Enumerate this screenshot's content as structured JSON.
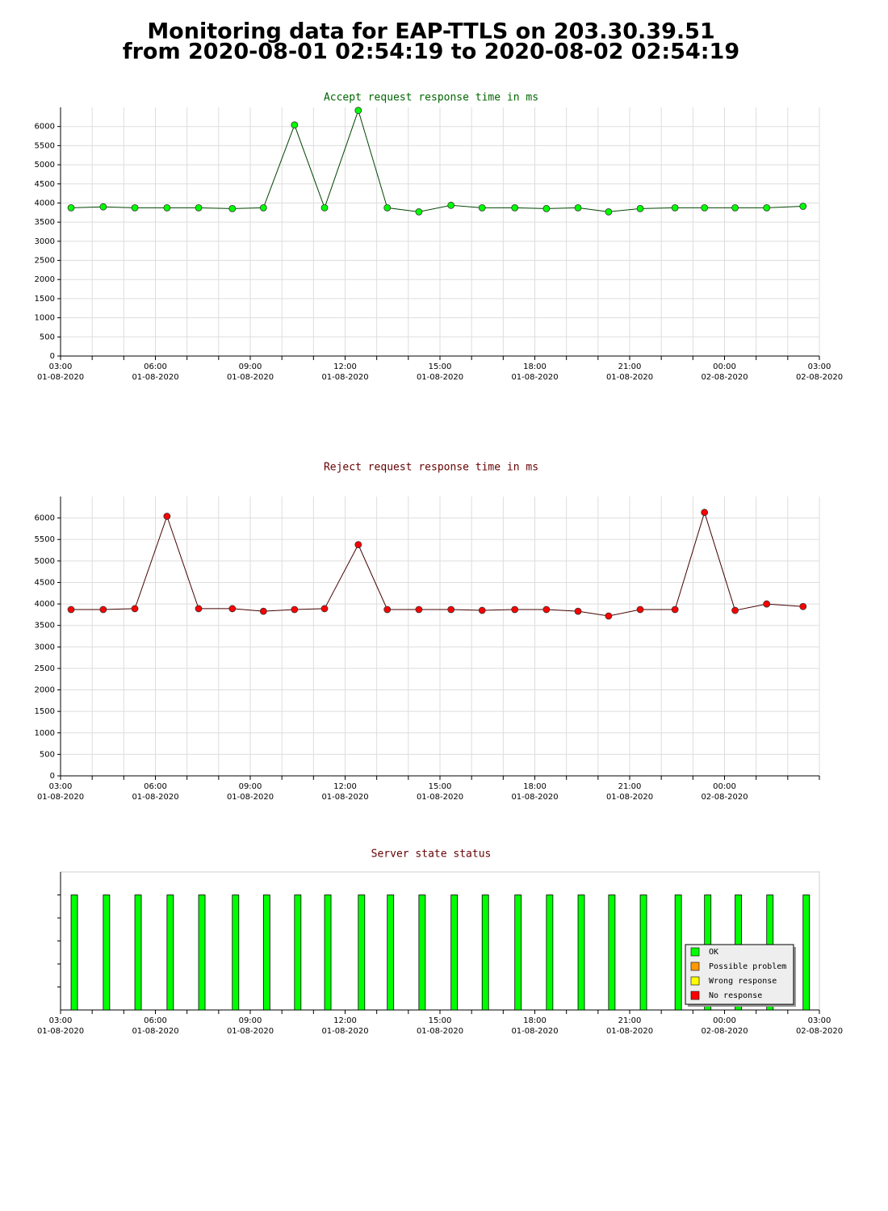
{
  "title": [
    "Monitoring data for EAP-TTLS on 203.30.39.51",
    "from 2020-08-01 02:54:19 to 2020-08-02 02:54:19"
  ],
  "chart_data": [
    {
      "type": "line",
      "title": "Accept request response time in ms",
      "title_color": "#006600",
      "x": [
        "2020-08-01 03:20",
        "2020-08-01 04:21",
        "2020-08-01 05:21",
        "2020-08-01 06:22",
        "2020-08-01 07:22",
        "2020-08-01 08:26",
        "2020-08-01 09:25",
        "2020-08-01 10:24",
        "2020-08-01 11:21",
        "2020-08-01 12:25",
        "2020-08-01 13:20",
        "2020-08-01 14:20",
        "2020-08-01 15:21",
        "2020-08-01 16:20",
        "2020-08-01 17:22",
        "2020-08-01 18:22",
        "2020-08-01 19:22",
        "2020-08-01 20:20",
        "2020-08-01 21:20",
        "2020-08-01 22:26",
        "2020-08-01 23:22",
        "2020-08-02 00:20",
        "2020-08-02 01:20",
        "2020-08-02 02:29"
      ],
      "values": [
        3875,
        3900,
        3875,
        3875,
        3875,
        3854,
        3875,
        6040,
        3875,
        6420,
        3875,
        3770,
        3940,
        3875,
        3875,
        3854,
        3875,
        3770,
        3854,
        3875,
        3875,
        3875,
        3875,
        3915
      ],
      "color": "#00ff00",
      "line_color": "#004400",
      "xlim": [
        "2020-08-01 03:00",
        "2020-08-02 03:00"
      ],
      "xticks": [
        {
          "value": "2020-08-01 03:00",
          "label": [
            "03:00",
            "01-08-2020"
          ]
        },
        {
          "value": "2020-08-01 04:00",
          "label": null
        },
        {
          "value": "2020-08-01 05:00",
          "label": null
        },
        {
          "value": "2020-08-01 06:00",
          "label": [
            "06:00",
            "01-08-2020"
          ]
        },
        {
          "value": "2020-08-01 07:00",
          "label": null
        },
        {
          "value": "2020-08-01 08:00",
          "label": null
        },
        {
          "value": "2020-08-01 09:00",
          "label": [
            "09:00",
            "01-08-2020"
          ]
        },
        {
          "value": "2020-08-01 10:00",
          "label": null
        },
        {
          "value": "2020-08-01 11:00",
          "label": null
        },
        {
          "value": "2020-08-01 12:00",
          "label": [
            "12:00",
            "01-08-2020"
          ]
        },
        {
          "value": "2020-08-01 13:00",
          "label": null
        },
        {
          "value": "2020-08-01 14:00",
          "label": null
        },
        {
          "value": "2020-08-01 15:00",
          "label": [
            "15:00",
            "01-08-2020"
          ]
        },
        {
          "value": "2020-08-01 16:00",
          "label": null
        },
        {
          "value": "2020-08-01 17:00",
          "label": null
        },
        {
          "value": "2020-08-01 18:00",
          "label": [
            "18:00",
            "01-08-2020"
          ]
        },
        {
          "value": "2020-08-01 19:00",
          "label": null
        },
        {
          "value": "2020-08-01 20:00",
          "label": null
        },
        {
          "value": "2020-08-01 21:00",
          "label": [
            "21:00",
            "01-08-2020"
          ]
        },
        {
          "value": "2020-08-01 22:00",
          "label": null
        },
        {
          "value": "2020-08-01 23:00",
          "label": null
        },
        {
          "value": "2020-08-02 00:00",
          "label": [
            "00:00",
            "02-08-2020"
          ]
        },
        {
          "value": "2020-08-02 01:00",
          "label": null
        },
        {
          "value": "2020-08-02 02:00",
          "label": null
        },
        {
          "value": "2020-08-02 03:00",
          "label": [
            "03:00",
            "02-08-2020"
          ]
        }
      ],
      "ylim": [
        0,
        6500
      ],
      "yticks": [
        0,
        500,
        1000,
        1500,
        2000,
        2500,
        3000,
        3500,
        4000,
        4500,
        5000,
        5500,
        6000
      ],
      "grid": true
    },
    {
      "type": "line",
      "title": "Reject request response time in ms",
      "title_color": "#660000",
      "x": [
        "2020-08-01 03:20",
        "2020-08-01 04:21",
        "2020-08-01 05:21",
        "2020-08-01 06:22",
        "2020-08-01 07:22",
        "2020-08-01 08:26",
        "2020-08-01 09:25",
        "2020-08-01 10:24",
        "2020-08-01 11:21",
        "2020-08-01 12:25",
        "2020-08-01 13:20",
        "2020-08-01 14:20",
        "2020-08-01 15:21",
        "2020-08-01 16:20",
        "2020-08-01 17:22",
        "2020-08-01 18:22",
        "2020-08-01 19:22",
        "2020-08-01 20:20",
        "2020-08-01 21:20",
        "2020-08-01 22:26",
        "2020-08-01 23:22",
        "2020-08-02 00:20",
        "2020-08-02 01:20",
        "2020-08-02 02:29"
      ],
      "values": [
        3870,
        3870,
        3890,
        6040,
        3890,
        3890,
        3830,
        3870,
        3890,
        5380,
        3870,
        3870,
        3870,
        3850,
        3870,
        3870,
        3830,
        3720,
        3870,
        3870,
        6130,
        3850,
        4000,
        3940
      ],
      "color": "#ff0000",
      "line_color": "#440000",
      "xlim": [
        "2020-08-01 03:00",
        "2020-08-02 03:00"
      ],
      "xticks": [
        {
          "value": "2020-08-01 03:00",
          "label": [
            "03:00",
            "01-08-2020"
          ]
        },
        {
          "value": "2020-08-01 04:00",
          "label": null
        },
        {
          "value": "2020-08-01 05:00",
          "label": null
        },
        {
          "value": "2020-08-01 06:00",
          "label": [
            "06:00",
            "01-08-2020"
          ]
        },
        {
          "value": "2020-08-01 07:00",
          "label": null
        },
        {
          "value": "2020-08-01 08:00",
          "label": null
        },
        {
          "value": "2020-08-01 09:00",
          "label": [
            "09:00",
            "01-08-2020"
          ]
        },
        {
          "value": "2020-08-01 10:00",
          "label": null
        },
        {
          "value": "2020-08-01 11:00",
          "label": null
        },
        {
          "value": "2020-08-01 12:00",
          "label": [
            "12:00",
            "01-08-2020"
          ]
        },
        {
          "value": "2020-08-01 13:00",
          "label": null
        },
        {
          "value": "2020-08-01 14:00",
          "label": null
        },
        {
          "value": "2020-08-01 15:00",
          "label": [
            "15:00",
            "01-08-2020"
          ]
        },
        {
          "value": "2020-08-01 16:00",
          "label": null
        },
        {
          "value": "2020-08-01 17:00",
          "label": null
        },
        {
          "value": "2020-08-01 18:00",
          "label": [
            "18:00",
            "01-08-2020"
          ]
        },
        {
          "value": "2020-08-01 19:00",
          "label": null
        },
        {
          "value": "2020-08-01 20:00",
          "label": null
        },
        {
          "value": "2020-08-01 21:00",
          "label": [
            "21:00",
            "01-08-2020"
          ]
        },
        {
          "value": "2020-08-01 22:00",
          "label": null
        },
        {
          "value": "2020-08-01 23:00",
          "label": null
        },
        {
          "value": "2020-08-02 00:00",
          "label": [
            "00:00",
            "02-08-2020"
          ]
        },
        {
          "value": "2020-08-02 01:00",
          "label": null
        },
        {
          "value": "2020-08-02 02:00",
          "label": null
        },
        {
          "value": "2020-08-02 03:00",
          "label": null
        }
      ],
      "ylim": [
        0,
        6500
      ],
      "yticks": [
        0,
        500,
        1000,
        1500,
        2000,
        2500,
        3000,
        3500,
        4000,
        4500,
        5000,
        5500,
        6000
      ],
      "grid": true
    },
    {
      "type": "bar",
      "title": "Server state status",
      "title_color": "#660000",
      "x": [
        "2020-08-01 03:20",
        "2020-08-01 04:21",
        "2020-08-01 05:21",
        "2020-08-01 06:22",
        "2020-08-01 07:22",
        "2020-08-01 08:26",
        "2020-08-01 09:25",
        "2020-08-01 10:24",
        "2020-08-01 11:21",
        "2020-08-01 12:25",
        "2020-08-01 13:20",
        "2020-08-01 14:20",
        "2020-08-01 15:21",
        "2020-08-01 16:20",
        "2020-08-01 17:22",
        "2020-08-01 18:22",
        "2020-08-01 19:22",
        "2020-08-01 20:20",
        "2020-08-01 21:20",
        "2020-08-01 22:26",
        "2020-08-01 23:22",
        "2020-08-02 00:20",
        "2020-08-02 01:20",
        "2020-08-02 02:29"
      ],
      "series": [
        {
          "name": "OK",
          "color": "#00ff00",
          "values": [
            1,
            1,
            1,
            1,
            1,
            1,
            1,
            1,
            1,
            1,
            1,
            1,
            1,
            1,
            1,
            1,
            1,
            1,
            1,
            1,
            1,
            1,
            1,
            1
          ]
        },
        {
          "name": "Possible problem",
          "color": "#ff9900",
          "values": [
            0,
            0,
            0,
            0,
            0,
            0,
            0,
            0,
            0,
            0,
            0,
            0,
            0,
            0,
            0,
            0,
            0,
            0,
            0,
            0,
            0,
            0,
            0,
            0
          ]
        },
        {
          "name": "Wrong response",
          "color": "#ffff00",
          "values": [
            0,
            0,
            0,
            0,
            0,
            0,
            0,
            0,
            0,
            0,
            0,
            0,
            0,
            0,
            0,
            0,
            0,
            0,
            0,
            0,
            0,
            0,
            0,
            0
          ]
        },
        {
          "name": "No response",
          "color": "#ff0000",
          "values": [
            0,
            0,
            0,
            0,
            0,
            0,
            0,
            0,
            0,
            0,
            0,
            0,
            0,
            0,
            0,
            0,
            0,
            0,
            0,
            0,
            0,
            0,
            0,
            0
          ]
        }
      ],
      "xlim": [
        "2020-08-01 03:00",
        "2020-08-02 03:00"
      ],
      "xticks": [
        {
          "value": "2020-08-01 03:00",
          "label": [
            "03:00",
            "01-08-2020"
          ]
        },
        {
          "value": "2020-08-01 04:00",
          "label": null
        },
        {
          "value": "2020-08-01 05:00",
          "label": null
        },
        {
          "value": "2020-08-01 06:00",
          "label": [
            "06:00",
            "01-08-2020"
          ]
        },
        {
          "value": "2020-08-01 07:00",
          "label": null
        },
        {
          "value": "2020-08-01 08:00",
          "label": null
        },
        {
          "value": "2020-08-01 09:00",
          "label": [
            "09:00",
            "01-08-2020"
          ]
        },
        {
          "value": "2020-08-01 10:00",
          "label": null
        },
        {
          "value": "2020-08-01 11:00",
          "label": null
        },
        {
          "value": "2020-08-01 12:00",
          "label": [
            "12:00",
            "01-08-2020"
          ]
        },
        {
          "value": "2020-08-01 13:00",
          "label": null
        },
        {
          "value": "2020-08-01 14:00",
          "label": null
        },
        {
          "value": "2020-08-01 15:00",
          "label": [
            "15:00",
            "01-08-2020"
          ]
        },
        {
          "value": "2020-08-01 16:00",
          "label": null
        },
        {
          "value": "2020-08-01 17:00",
          "label": null
        },
        {
          "value": "2020-08-01 18:00",
          "label": [
            "18:00",
            "01-08-2020"
          ]
        },
        {
          "value": "2020-08-01 19:00",
          "label": null
        },
        {
          "value": "2020-08-01 20:00",
          "label": null
        },
        {
          "value": "2020-08-01 21:00",
          "label": [
            "21:00",
            "01-08-2020"
          ]
        },
        {
          "value": "2020-08-01 22:00",
          "label": null
        },
        {
          "value": "2020-08-01 23:00",
          "label": null
        },
        {
          "value": "2020-08-02 00:00",
          "label": [
            "00:00",
            "02-08-2020"
          ]
        },
        {
          "value": "2020-08-02 01:00",
          "label": null
        },
        {
          "value": "2020-08-02 02:00",
          "label": null
        },
        {
          "value": "2020-08-02 03:00",
          "label": [
            "03:00",
            "02-08-2020"
          ]
        }
      ],
      "ylim": [
        0,
        1.2
      ],
      "grid": false,
      "legend": "bottom-right"
    }
  ]
}
